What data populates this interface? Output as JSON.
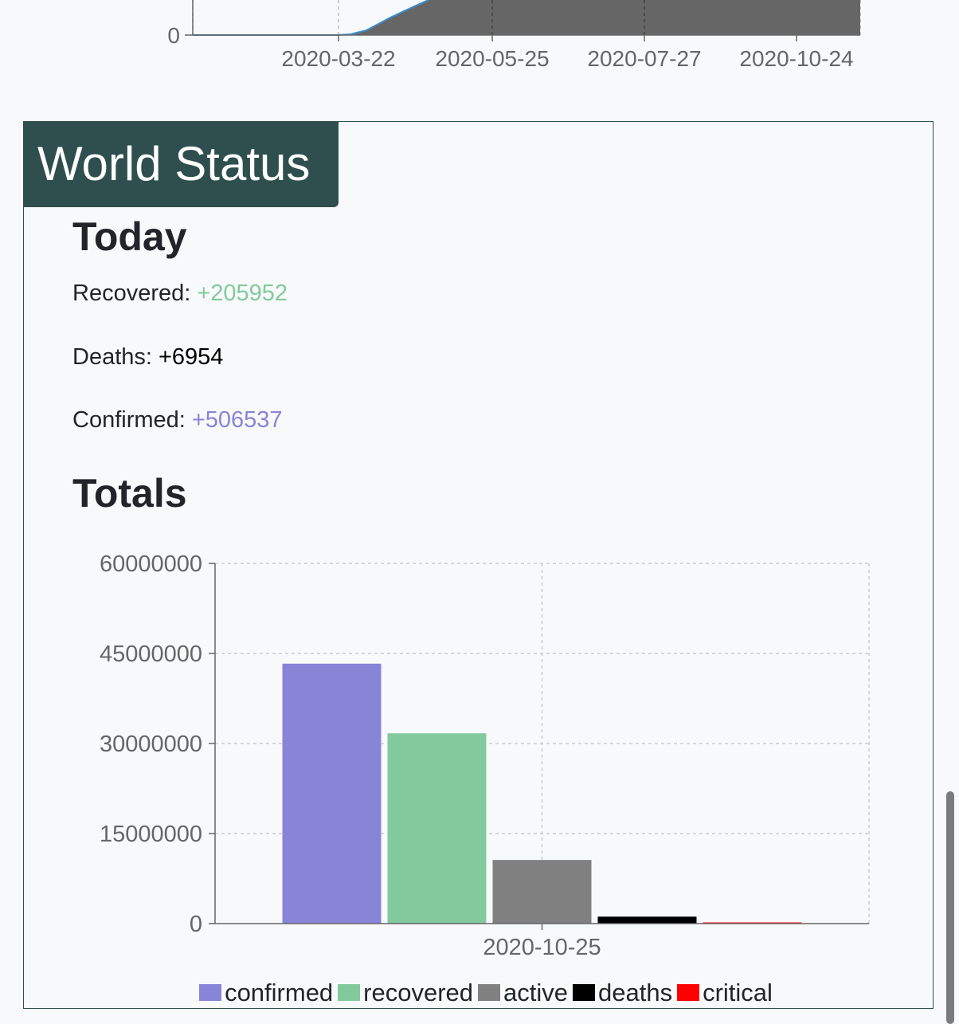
{
  "top_chart": {
    "x_ticks": [
      "2020-03-22",
      "2020-05-25",
      "2020-07-27",
      "2020-10-24"
    ],
    "y_ticks": [
      "0"
    ],
    "fill_color": "#666666",
    "line_color": "#3a8fd0"
  },
  "world_status": {
    "title": "World Status",
    "today": {
      "heading": "Today",
      "recovered_label": "Recovered:",
      "recovered_value": "+205952",
      "deaths_label": "Deaths:",
      "deaths_value": "+6954",
      "confirmed_label": "Confirmed:",
      "confirmed_value": "+506537"
    },
    "totals": {
      "heading": "Totals"
    }
  },
  "colors": {
    "card_header": "#2f4f4f",
    "confirmed": "#8884d8",
    "recovered": "#82ca9d",
    "active": "#808080",
    "deaths": "#000000",
    "critical": "#ff0000"
  },
  "chart_data": {
    "type": "bar",
    "title": "",
    "xlabel": "",
    "ylabel": "",
    "categories": [
      "2020-10-25"
    ],
    "series": [
      {
        "name": "confirmed",
        "values": [
          43300000
        ],
        "color": "#8884d8"
      },
      {
        "name": "recovered",
        "values": [
          31700000
        ],
        "color": "#82ca9d"
      },
      {
        "name": "active",
        "values": [
          10600000
        ],
        "color": "#808080"
      },
      {
        "name": "deaths",
        "values": [
          1160000
        ],
        "color": "#000000"
      },
      {
        "name": "critical",
        "values": [
          80000
        ],
        "color": "#ff0000"
      }
    ],
    "ylim": [
      0,
      60000000
    ],
    "y_ticks": [
      "0",
      "15000000",
      "30000000",
      "45000000",
      "60000000"
    ],
    "grid": true,
    "legend": "bottom"
  }
}
